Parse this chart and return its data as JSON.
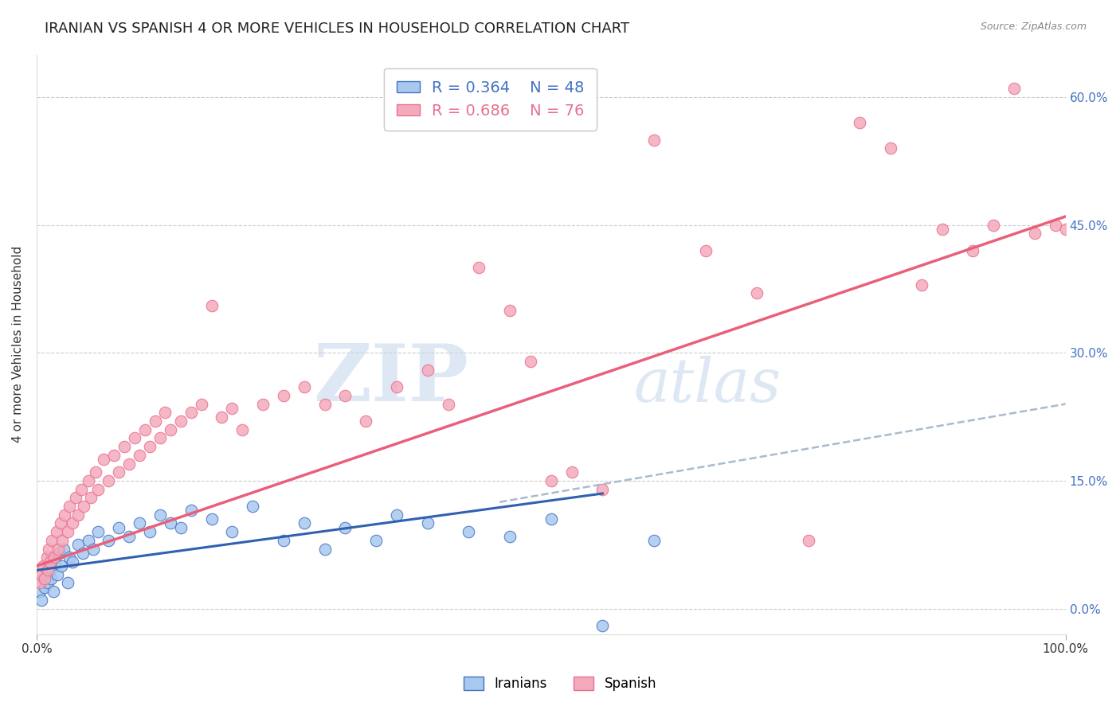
{
  "title": "IRANIAN VS SPANISH 4 OR MORE VEHICLES IN HOUSEHOLD CORRELATION CHART",
  "source_text": "Source: ZipAtlas.com",
  "ylabel": "4 or more Vehicles in Household",
  "watermark_zip": "ZIP",
  "watermark_atlas": "atlas",
  "xlim": [
    0.0,
    100.0
  ],
  "ylim": [
    -3.0,
    65.0
  ],
  "yticks": [
    0.0,
    15.0,
    30.0,
    45.0,
    60.0
  ],
  "iranian_R": 0.364,
  "iranian_N": 48,
  "spanish_R": 0.686,
  "spanish_N": 76,
  "iranian_color": "#A8C8EE",
  "iranian_edge_color": "#4472C4",
  "spanish_color": "#F4AABB",
  "spanish_edge_color": "#E87090",
  "iranian_line_color": "#3060B0",
  "spanish_line_color": "#E8607A",
  "dashed_line_color": "#AABBCC",
  "iranian_scatter_x": [
    0.3,
    0.5,
    0.6,
    0.8,
    1.0,
    1.1,
    1.2,
    1.3,
    1.4,
    1.5,
    1.6,
    1.8,
    2.0,
    2.2,
    2.4,
    2.6,
    3.0,
    3.2,
    3.5,
    4.0,
    4.5,
    5.0,
    5.5,
    6.0,
    7.0,
    8.0,
    9.0,
    10.0,
    11.0,
    12.0,
    13.0,
    14.0,
    15.0,
    17.0,
    19.0,
    21.0,
    24.0,
    26.0,
    28.0,
    30.0,
    33.0,
    35.0,
    38.0,
    42.0,
    46.0,
    50.0,
    55.0,
    60.0
  ],
  "iranian_scatter_y": [
    2.0,
    1.0,
    3.5,
    2.5,
    4.0,
    3.0,
    5.0,
    4.5,
    3.5,
    6.0,
    2.0,
    5.5,
    4.0,
    6.5,
    5.0,
    7.0,
    3.0,
    6.0,
    5.5,
    7.5,
    6.5,
    8.0,
    7.0,
    9.0,
    8.0,
    9.5,
    8.5,
    10.0,
    9.0,
    11.0,
    10.0,
    9.5,
    11.5,
    10.5,
    9.0,
    12.0,
    8.0,
    10.0,
    7.0,
    9.5,
    8.0,
    11.0,
    10.0,
    9.0,
    8.5,
    10.5,
    -2.0,
    8.0
  ],
  "spanish_scatter_x": [
    0.3,
    0.5,
    0.6,
    0.8,
    1.0,
    1.1,
    1.2,
    1.3,
    1.5,
    1.7,
    1.9,
    2.1,
    2.3,
    2.5,
    2.7,
    3.0,
    3.2,
    3.5,
    3.8,
    4.0,
    4.3,
    4.6,
    5.0,
    5.3,
    5.7,
    6.0,
    6.5,
    7.0,
    7.5,
    8.0,
    8.5,
    9.0,
    9.5,
    10.0,
    10.5,
    11.0,
    11.5,
    12.0,
    12.5,
    13.0,
    14.0,
    15.0,
    16.0,
    17.0,
    18.0,
    19.0,
    20.0,
    22.0,
    24.0,
    26.0,
    28.0,
    30.0,
    32.0,
    35.0,
    38.0,
    40.0,
    43.0,
    46.0,
    48.0,
    50.0,
    52.0,
    55.0,
    60.0,
    65.0,
    70.0,
    75.0,
    80.0,
    83.0,
    86.0,
    88.0,
    91.0,
    93.0,
    95.0,
    97.0,
    99.0,
    100.0
  ],
  "spanish_scatter_y": [
    3.0,
    4.0,
    5.0,
    3.5,
    6.0,
    4.5,
    7.0,
    5.5,
    8.0,
    6.0,
    9.0,
    7.0,
    10.0,
    8.0,
    11.0,
    9.0,
    12.0,
    10.0,
    13.0,
    11.0,
    14.0,
    12.0,
    15.0,
    13.0,
    16.0,
    14.0,
    17.5,
    15.0,
    18.0,
    16.0,
    19.0,
    17.0,
    20.0,
    18.0,
    21.0,
    19.0,
    22.0,
    20.0,
    23.0,
    21.0,
    22.0,
    23.0,
    24.0,
    35.5,
    22.5,
    23.5,
    21.0,
    24.0,
    25.0,
    26.0,
    24.0,
    25.0,
    22.0,
    26.0,
    28.0,
    24.0,
    40.0,
    35.0,
    29.0,
    15.0,
    16.0,
    14.0,
    55.0,
    42.0,
    37.0,
    8.0,
    57.0,
    54.0,
    38.0,
    44.5,
    42.0,
    45.0,
    61.0,
    44.0,
    45.0,
    44.5
  ],
  "solid_blue_x0": 0.0,
  "solid_blue_x1": 55.0,
  "solid_blue_y0": 4.5,
  "solid_blue_y1": 13.5,
  "dashed_x0": 45.0,
  "dashed_x1": 100.0,
  "dashed_y0": 12.5,
  "dashed_y1": 24.0,
  "pink_x0": 0.0,
  "pink_x1": 100.0,
  "pink_y0": 5.0,
  "pink_y1": 46.0,
  "background_color": "#FFFFFF",
  "grid_color": "#CCCCCC",
  "title_fontsize": 13,
  "axis_label_fontsize": 11,
  "tick_fontsize": 11,
  "right_tick_color": "#4472C4"
}
